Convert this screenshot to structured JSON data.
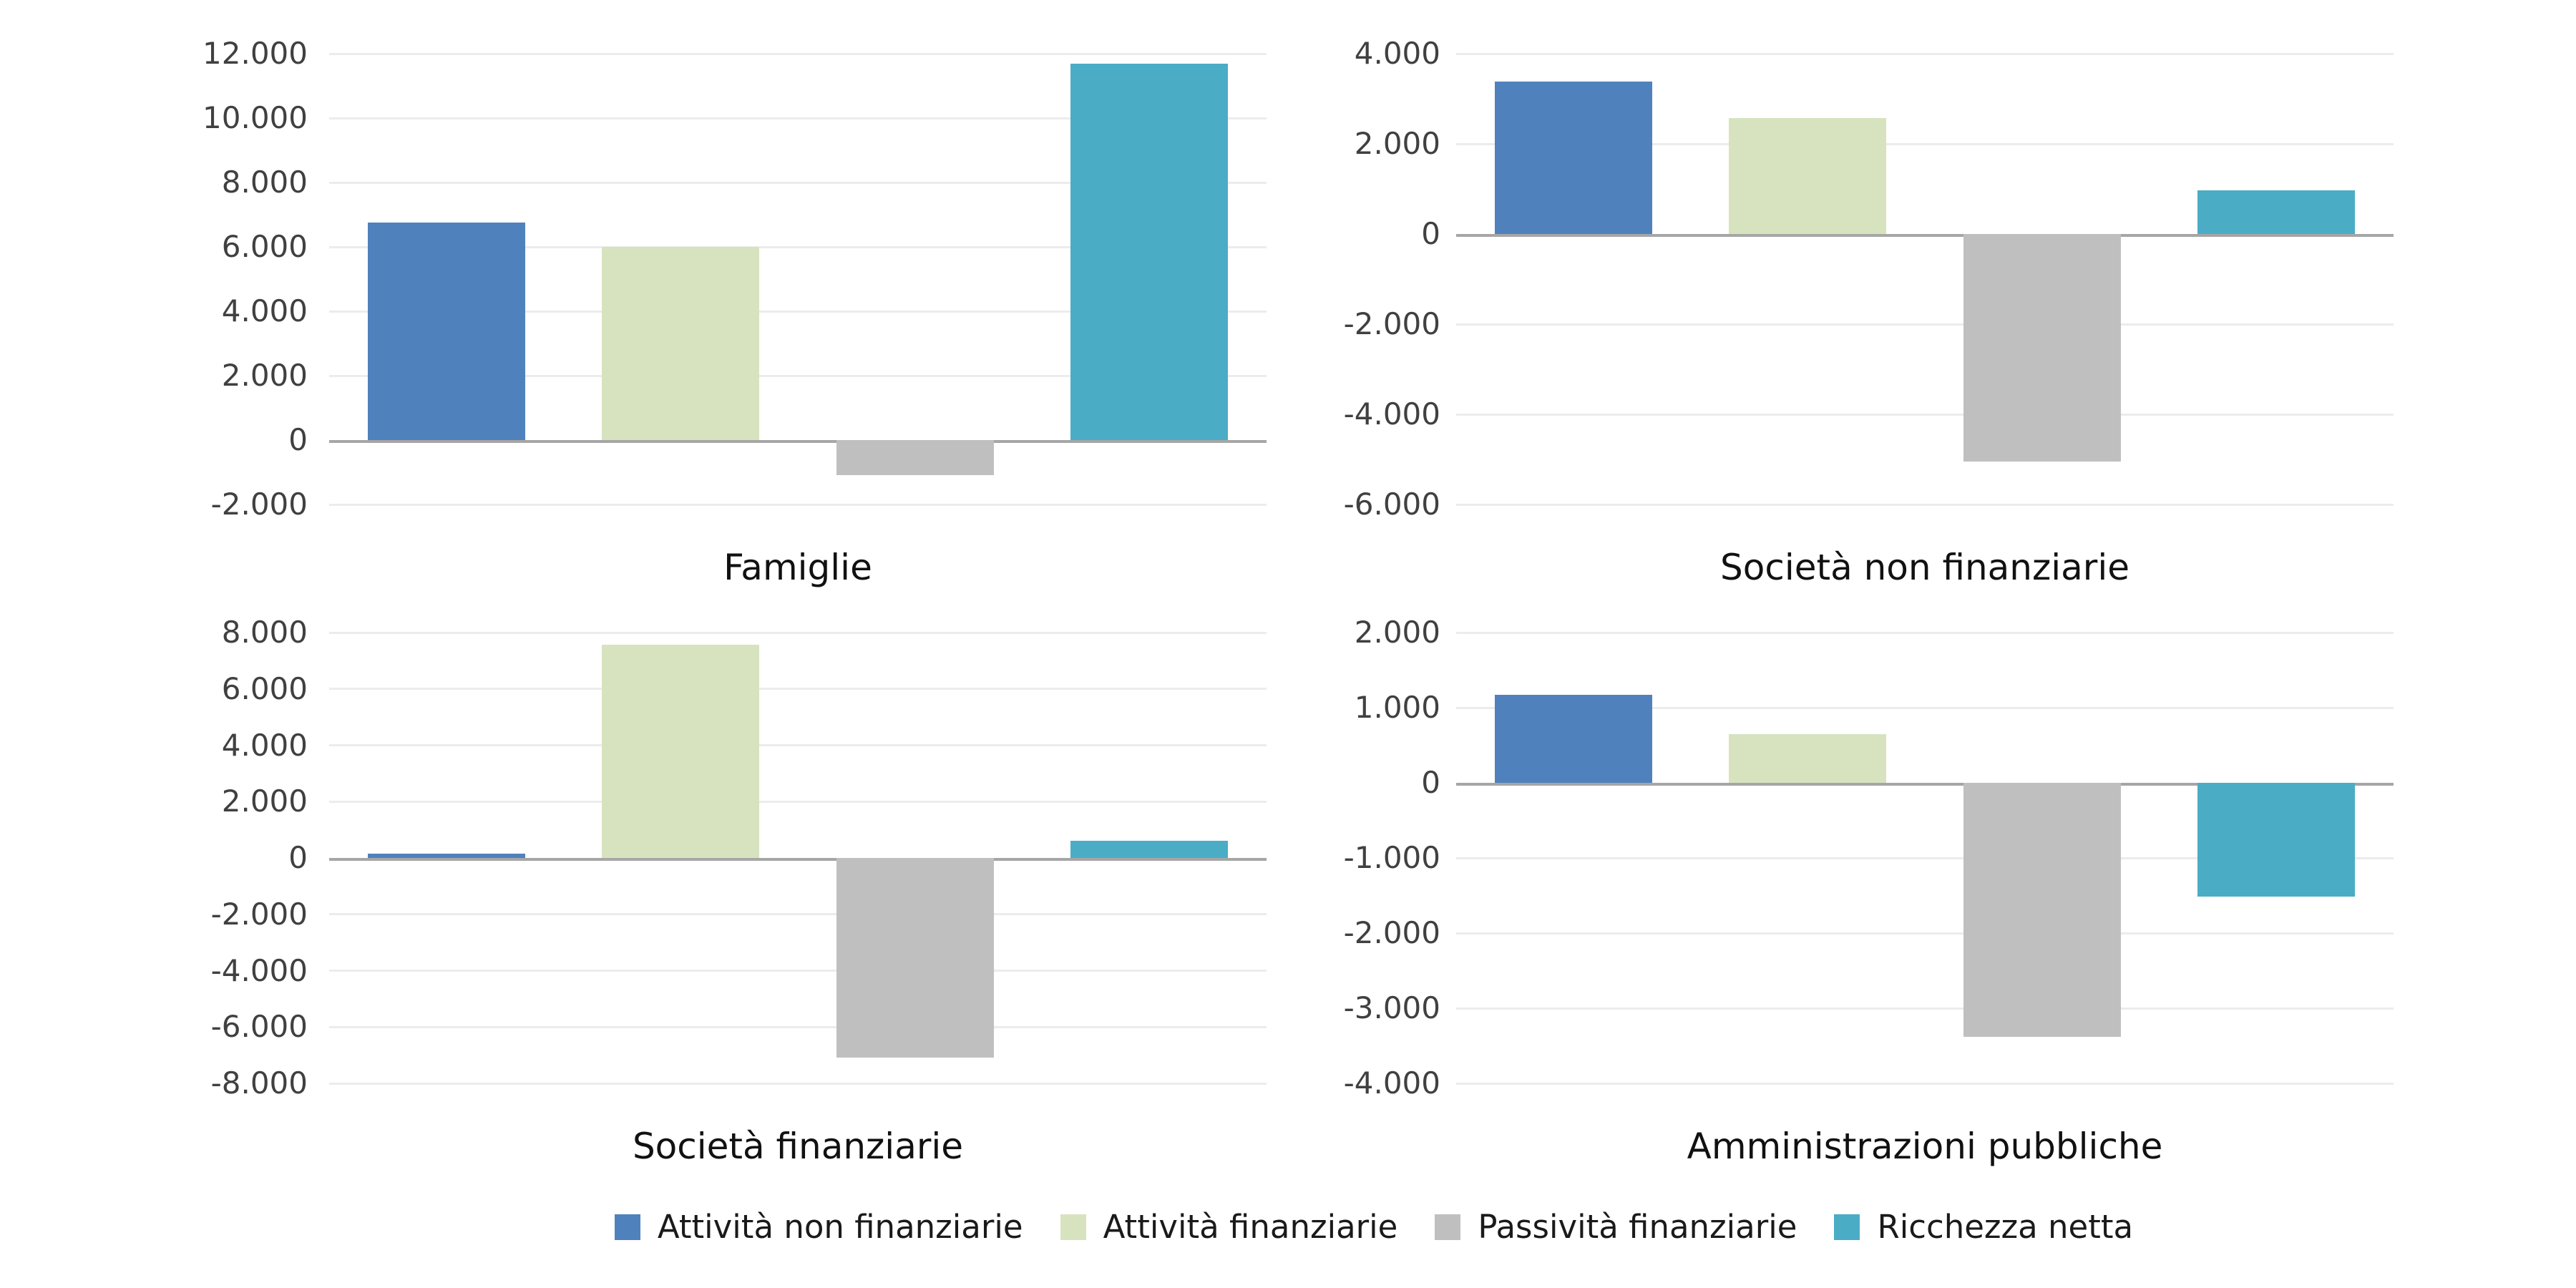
{
  "style": {
    "background": "#ffffff",
    "grid_color": "#ececec",
    "zero_line_color": "#a6a6a6",
    "tick_text_color": "#404040",
    "title_color": "#111111",
    "legend_text_color": "#1a1a1a"
  },
  "legend": {
    "position": "bottom",
    "items": [
      {
        "label": "Attività non finanziarie",
        "color": "#4F81BD"
      },
      {
        "label": "Attività finanziarie",
        "color": "#D7E3BF"
      },
      {
        "label": "Passività finanziarie",
        "color": "#BFBFBF"
      },
      {
        "label": "Ricchezza netta",
        "color": "#4BACC6"
      }
    ]
  },
  "chart_data": [
    {
      "type": "bar",
      "title": "Famiglie",
      "xlabel": "",
      "ylabel": "",
      "grid": true,
      "legend_position": "bottom",
      "ylim": [
        -2000,
        12000
      ],
      "tick_step": 2000,
      "ticks": [
        {
          "value": 12000,
          "label": "12.000"
        },
        {
          "value": 10000,
          "label": "10.000"
        },
        {
          "value": 8000,
          "label": "8.000"
        },
        {
          "value": 6000,
          "label": "6.000"
        },
        {
          "value": 4000,
          "label": "4.000"
        },
        {
          "value": 2000,
          "label": "2.000"
        },
        {
          "value": 0,
          "label": "0"
        },
        {
          "value": -2000,
          "label": "-2.000"
        }
      ],
      "categories": [
        "Attività non finanziarie",
        "Attività finanziarie",
        "Passività finanziarie",
        "Ricchezza netta"
      ],
      "values": [
        6750,
        6010,
        -1090,
        11700
      ]
    },
    {
      "type": "bar",
      "title": "Società non finanziarie",
      "xlabel": "",
      "ylabel": "",
      "grid": true,
      "legend_position": "bottom",
      "ylim": [
        -6000,
        4000
      ],
      "tick_step": 2000,
      "ticks": [
        {
          "value": 4000,
          "label": "4.000"
        },
        {
          "value": 2000,
          "label": "2.000"
        },
        {
          "value": 0,
          "label": "0"
        },
        {
          "value": -2000,
          "label": "-2.000"
        },
        {
          "value": -4000,
          "label": "-4.000"
        },
        {
          "value": -6000,
          "label": "-6.000"
        }
      ],
      "categories": [
        "Attività non finanziarie",
        "Attività finanziarie",
        "Passività finanziarie",
        "Ricchezza netta"
      ],
      "values": [
        3380,
        2570,
        -5040,
        970
      ]
    },
    {
      "type": "bar",
      "title": "Società finanziarie",
      "xlabel": "",
      "ylabel": "",
      "grid": true,
      "legend_position": "bottom",
      "ylim": [
        -8000,
        8000
      ],
      "tick_step": 2000,
      "ticks": [
        {
          "value": 8000,
          "label": "8.000"
        },
        {
          "value": 6000,
          "label": "6.000"
        },
        {
          "value": 4000,
          "label": "4.000"
        },
        {
          "value": 2000,
          "label": "2.000"
        },
        {
          "value": 0,
          "label": "0"
        },
        {
          "value": -2000,
          "label": "-2.000"
        },
        {
          "value": -4000,
          "label": "-4.000"
        },
        {
          "value": -6000,
          "label": "-6.000"
        },
        {
          "value": -8000,
          "label": "-8.000"
        }
      ],
      "categories": [
        "Attività non finanziarie",
        "Attività finanziarie",
        "Passività finanziarie",
        "Ricchezza netta"
      ],
      "values": [
        150,
        7580,
        -7090,
        610
      ]
    },
    {
      "type": "bar",
      "title": "Amministrazioni pubbliche",
      "xlabel": "",
      "ylabel": "",
      "grid": true,
      "legend_position": "bottom",
      "ylim": [
        -4000,
        2000
      ],
      "tick_step": 1000,
      "ticks": [
        {
          "value": 2000,
          "label": "2.000"
        },
        {
          "value": 1000,
          "label": "1.000"
        },
        {
          "value": 0,
          "label": "0"
        },
        {
          "value": -1000,
          "label": "-1.000"
        },
        {
          "value": -2000,
          "label": "-2.000"
        },
        {
          "value": -3000,
          "label": "-3.000"
        },
        {
          "value": -4000,
          "label": "-4.000"
        }
      ],
      "categories": [
        "Attività non finanziarie",
        "Attività finanziarie",
        "Passività finanziarie",
        "Ricchezza netta"
      ],
      "values": [
        1170,
        650,
        -3380,
        -1510
      ]
    }
  ]
}
